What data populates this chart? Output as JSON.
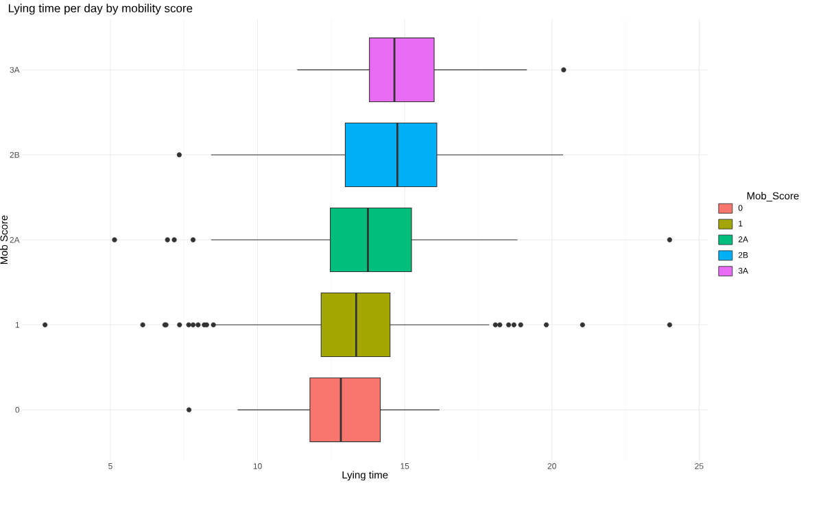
{
  "chart_data": {
    "type": "box",
    "title": "Lying time per day by mobility score",
    "xlabel": "Lying time",
    "ylabel": "Mob Score",
    "legend_title": "Mob_Score",
    "legend": "right",
    "orientation": "horizontal",
    "grid": true,
    "categories": [
      "3A",
      "2B",
      "2A",
      "1",
      "0"
    ],
    "series": [
      {
        "name": "0",
        "color": "#f8766d",
        "boxes": [
          null,
          null,
          null,
          null,
          {
            "low": 9.32,
            "q1": 11.78,
            "median": 12.83,
            "q3": 14.17,
            "high": 16.18,
            "outliers": [
              7.67
            ]
          }
        ]
      },
      {
        "name": "1",
        "color": "#a3a500",
        "boxes": [
          null,
          null,
          null,
          {
            "low": 8.56,
            "q1": 12.16,
            "median": 13.35,
            "q3": 14.5,
            "high": 17.87,
            "outliers": [
              2.78,
              6.1,
              6.85,
              6.89,
              7.35,
              7.66,
              7.81,
              7.98,
              8.19,
              8.27,
              8.5,
              18.08,
              18.23,
              18.53,
              18.71,
              18.94,
              19.81,
              21.04,
              24.0
            ]
          },
          null
        ]
      },
      {
        "name": "2A",
        "color": "#00bf7d",
        "boxes": [
          null,
          null,
          {
            "low": 8.42,
            "q1": 12.47,
            "median": 13.75,
            "q3": 15.23,
            "high": 18.83,
            "outliers": [
              5.14,
              6.94,
              7.17,
              7.81,
              24.0
            ]
          },
          null,
          null
        ]
      },
      {
        "name": "2B",
        "color": "#00b0f6",
        "boxes": [
          null,
          {
            "low": 8.42,
            "q1": 12.98,
            "median": 14.75,
            "q3": 16.09,
            "high": 20.38,
            "outliers": [
              7.34
            ]
          },
          null,
          null,
          null
        ]
      },
      {
        "name": "3A",
        "color": "#e76bf3",
        "boxes": [
          {
            "low": 11.35,
            "q1": 13.8,
            "median": 14.65,
            "q3": 16.0,
            "high": 19.15,
            "outliers": [
              20.4
            ]
          },
          null,
          null,
          null,
          null
        ]
      }
    ],
    "xlim": [
      2.0,
      25.3
    ],
    "xticks": [
      5,
      10,
      15,
      20,
      25
    ]
  }
}
